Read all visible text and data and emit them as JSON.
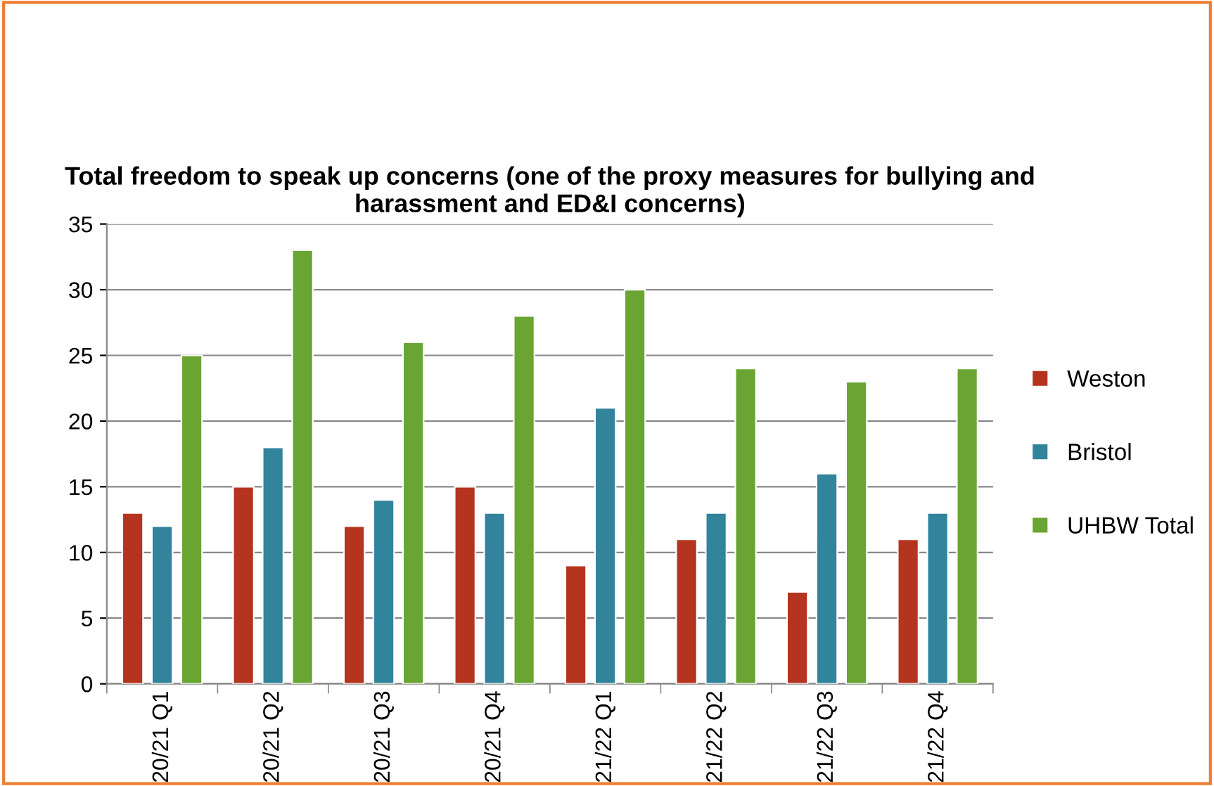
{
  "chart_data": {
    "type": "bar",
    "title": "Total freedom to speak up concerns (one of the proxy measures for bullying and harassment and ED&I concerns)",
    "categories": [
      "20/21 Q1",
      "20/21 Q2",
      "20/21 Q3",
      "20/21 Q4",
      "21/22 Q1",
      "21/22 Q2",
      "21/22 Q3",
      "21/22 Q4"
    ],
    "series": [
      {
        "name": "Weston",
        "color": "#b5341f",
        "values": [
          13,
          15,
          12,
          15,
          9,
          11,
          7,
          11
        ]
      },
      {
        "name": "Bristol",
        "color": "#31849b",
        "values": [
          12,
          18,
          14,
          13,
          21,
          13,
          16,
          13
        ]
      },
      {
        "name": "UHBW Total",
        "color": "#6aa533",
        "values": [
          25,
          33,
          26,
          28,
          30,
          24,
          23,
          24
        ]
      }
    ],
    "ylim": [
      0,
      35
    ],
    "yticks": [
      0,
      5,
      10,
      15,
      20,
      25,
      30,
      35
    ],
    "grid": "y",
    "legend": "right"
  }
}
